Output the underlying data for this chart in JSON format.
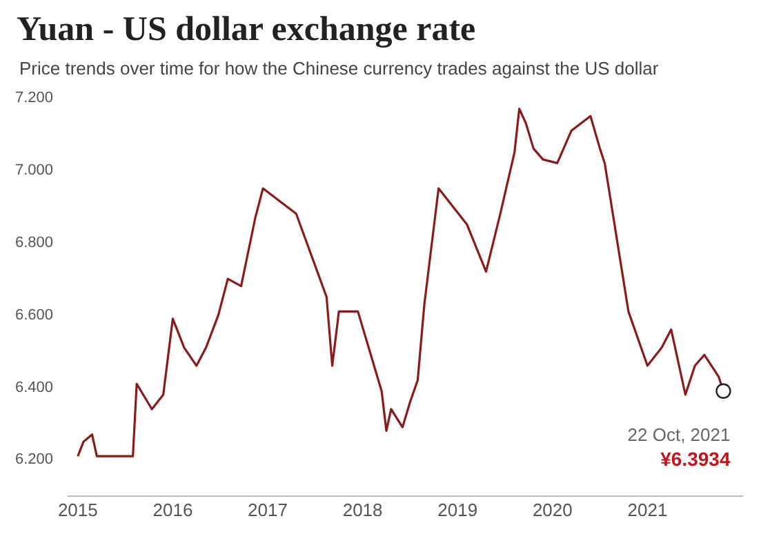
{
  "chart_data": {
    "type": "line",
    "title": "Yuan - US dollar exchange rate",
    "subtitle": "Price trends over time for how the Chinese currency trades against the US dollar",
    "x": [
      2015.0,
      2015.06,
      2015.15,
      2015.2,
      2015.58,
      2015.62,
      2015.78,
      2015.9,
      2016.0,
      2016.12,
      2016.25,
      2016.35,
      2016.48,
      2016.58,
      2016.72,
      2016.87,
      2016.95,
      2017.3,
      2017.62,
      2017.68,
      2017.75,
      2017.95,
      2018.2,
      2018.25,
      2018.3,
      2018.42,
      2018.5,
      2018.58,
      2018.65,
      2018.8,
      2019.1,
      2019.3,
      2019.45,
      2019.6,
      2019.65,
      2019.72,
      2019.8,
      2019.9,
      2020.05,
      2020.2,
      2020.4,
      2020.5,
      2020.55,
      2020.8,
      2021.0,
      2021.15,
      2021.25,
      2021.4,
      2021.5,
      2021.6,
      2021.75,
      2021.8
    ],
    "series": [
      {
        "color": "#8b1a1a",
        "values": [
          6.21,
          6.25,
          6.27,
          6.21,
          6.21,
          6.41,
          6.34,
          6.38,
          6.59,
          6.51,
          6.46,
          6.51,
          6.6,
          6.7,
          6.68,
          6.87,
          6.95,
          6.88,
          6.65,
          6.46,
          6.61,
          6.61,
          6.39,
          6.28,
          6.34,
          6.29,
          6.36,
          6.42,
          6.63,
          6.95,
          6.85,
          6.72,
          6.88,
          7.05,
          7.17,
          7.13,
          7.06,
          7.03,
          7.02,
          7.11,
          7.15,
          7.06,
          7.02,
          6.61,
          6.46,
          6.51,
          6.56,
          6.38,
          6.46,
          6.49,
          6.43,
          6.39
        ]
      }
    ],
    "xlim": [
      2014.9,
      2022.0
    ],
    "xticks": [
      2015,
      2016,
      2017,
      2018,
      2019,
      2020,
      2021
    ],
    "ylim": [
      6.1,
      7.2
    ],
    "yticks": [
      {
        "value": 6.2,
        "label": "6.200"
      },
      {
        "value": 6.4,
        "label": "6.400"
      },
      {
        "value": 6.6,
        "label": "6.600"
      },
      {
        "value": 6.8,
        "label": "6.800"
      },
      {
        "value": 7.0,
        "label": "7.000"
      },
      {
        "value": 7.2,
        "label": "7.200"
      }
    ],
    "annotations": [
      {
        "text": "22 Oct, 2021",
        "x": 2021.8,
        "y": 6.39
      },
      {
        "text": "¥6.3934",
        "x": 2021.8,
        "y": 6.39
      }
    ],
    "grid": false,
    "legend": false,
    "marker": "none",
    "line_style": "solid"
  }
}
